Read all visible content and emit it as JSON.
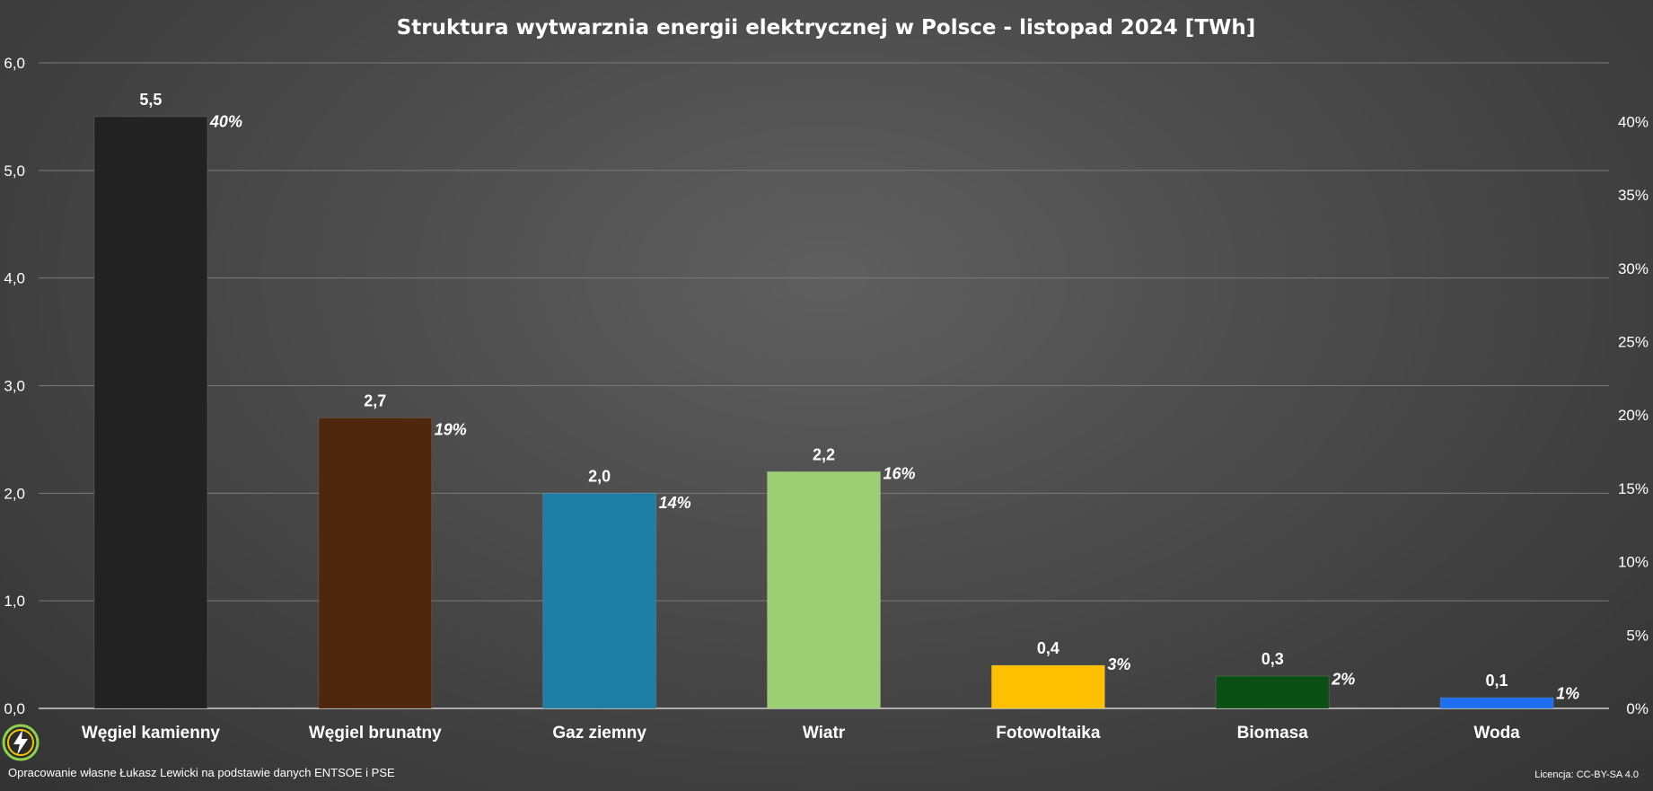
{
  "chart_data": {
    "type": "bar",
    "title": "Struktura wytwarznia energii elektrycznej w Polsce - listopad 2024 [TWh]",
    "categories": [
      "Węgiel kamienny",
      "Węgiel brunatny",
      "Gaz ziemny",
      "Wiatr",
      "Fotowoltaika",
      "Biomasa",
      "Woda"
    ],
    "values": [
      5.5,
      2.7,
      2.0,
      2.2,
      0.4,
      0.3,
      0.1
    ],
    "value_labels": [
      "5,5",
      "2,7",
      "2,0",
      "2,2",
      "0,4",
      "0,3",
      "0,1"
    ],
    "percent_values": [
      40,
      19,
      14,
      16,
      3,
      2,
      1
    ],
    "percent_labels": [
      "40%",
      "19%",
      "14%",
      "16%",
      "3%",
      "2%",
      "1%"
    ],
    "colors": [
      "#222222",
      "#4f270c",
      "#1c7ea4",
      "#9ccf74",
      "#ffc000",
      "#0b4f14",
      "#1e6ff0"
    ],
    "ylim": [
      0,
      6
    ],
    "y_ticks": [
      "0,0",
      "1,0",
      "2,0",
      "3,0",
      "4,0",
      "5,0",
      "6,0"
    ],
    "y2lim": [
      0,
      44
    ],
    "y2_ticks": [
      "0%",
      "5%",
      "10%",
      "15%",
      "20%",
      "25%",
      "30%",
      "35%",
      "40%"
    ],
    "grid": true,
    "legend": "none"
  },
  "footer": {
    "source": "Opracowanie własne Łukasz Lewicki na podstawie danych ENTSOE i PSE",
    "license": "Licencja: CC-BY-SA 4.0"
  },
  "logo_icon": "lightning-bolt-icon"
}
